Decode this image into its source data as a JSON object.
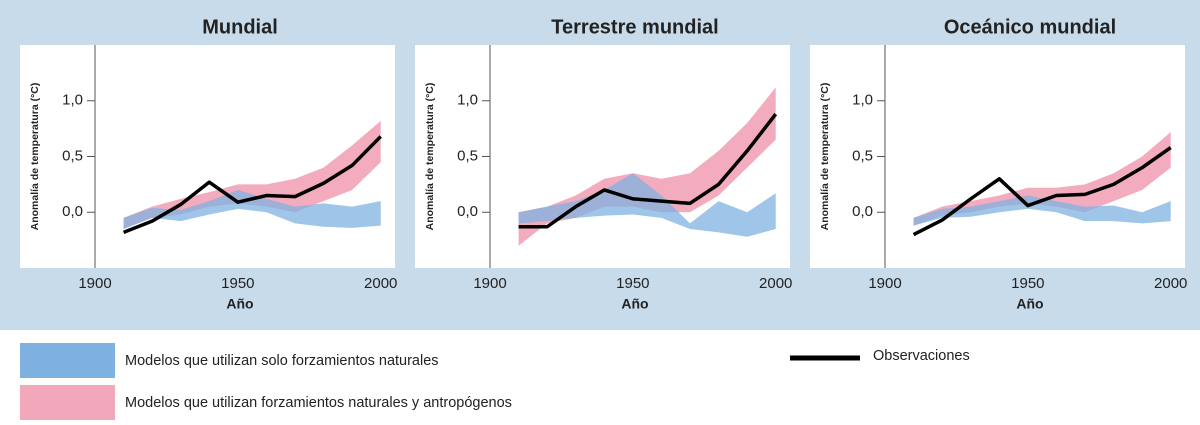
{
  "chart_data": [
    {
      "type": "line",
      "title": "Mundial",
      "xlabel": "Año",
      "ylabel": "Anomalía de temperatura (°C)",
      "x": [
        1910,
        1920,
        1930,
        1940,
        1950,
        1960,
        1970,
        1980,
        1990,
        2000
      ],
      "xlim": [
        1900,
        2005
      ],
      "ylim": [
        -0.5,
        1.5
      ],
      "xticks": [
        1900,
        1950,
        2000
      ],
      "yticks": [
        {
          "value": 0,
          "label": "0,0"
        },
        {
          "value": 0.5,
          "label": "0,5"
        },
        {
          "value": 1,
          "label": "1,0"
        }
      ],
      "bands": [
        {
          "color": "#f2a7ba",
          "low": [
            -0.15,
            -0.05,
            -0.02,
            0.05,
            0.08,
            0.05,
            0.0,
            0.1,
            0.2,
            0.45
          ],
          "high": [
            -0.05,
            0.05,
            0.12,
            0.18,
            0.25,
            0.25,
            0.3,
            0.4,
            0.6,
            0.82
          ]
        },
        {
          "color": "#7fb1e0",
          "low": [
            -0.15,
            -0.05,
            -0.08,
            -0.02,
            0.03,
            0.0,
            -0.1,
            -0.13,
            -0.14,
            -0.12
          ],
          "high": [
            -0.05,
            0.04,
            0.02,
            0.1,
            0.2,
            0.12,
            0.05,
            0.08,
            0.05,
            0.1
          ]
        }
      ],
      "series": [
        {
          "color": "#000000",
          "values": [
            -0.18,
            -0.08,
            0.07,
            0.27,
            0.09,
            0.15,
            0.14,
            0.26,
            0.42,
            0.68
          ]
        }
      ]
    },
    {
      "type": "line",
      "title": "Terrestre mundial",
      "xlabel": "Año",
      "ylabel": "Anomalía de temperatura (°C)",
      "x": [
        1910,
        1920,
        1930,
        1940,
        1950,
        1960,
        1970,
        1980,
        1990,
        2000
      ],
      "xlim": [
        1900,
        2005
      ],
      "ylim": [
        -0.5,
        1.5
      ],
      "xticks": [
        1900,
        1950,
        2000
      ],
      "yticks": [
        {
          "value": 0,
          "label": "0,0"
        },
        {
          "value": 0.5,
          "label": "0,5"
        },
        {
          "value": 1,
          "label": "1,0"
        }
      ],
      "bands": [
        {
          "color": "#f2a7ba",
          "low": [
            -0.3,
            -0.1,
            -0.05,
            0.05,
            0.05,
            0.0,
            0.0,
            0.15,
            0.4,
            0.65
          ],
          "high": [
            0.0,
            0.05,
            0.15,
            0.3,
            0.35,
            0.3,
            0.35,
            0.55,
            0.8,
            1.12
          ]
        },
        {
          "color": "#7fb1e0",
          "low": [
            -0.1,
            -0.08,
            -0.05,
            -0.03,
            -0.02,
            -0.05,
            -0.15,
            -0.18,
            -0.22,
            -0.15
          ],
          "high": [
            0.0,
            0.05,
            0.1,
            0.2,
            0.35,
            0.15,
            -0.1,
            0.1,
            0.0,
            0.17
          ]
        }
      ],
      "series": [
        {
          "color": "#000000",
          "values": [
            -0.13,
            -0.13,
            0.05,
            0.2,
            0.12,
            0.1,
            0.08,
            0.25,
            0.55,
            0.88
          ]
        }
      ]
    },
    {
      "type": "line",
      "title": "Oceánico mundial",
      "xlabel": "Año",
      "ylabel": "Anomalía de temperatura (°C)",
      "x": [
        1910,
        1920,
        1930,
        1940,
        1950,
        1960,
        1970,
        1980,
        1990,
        2000
      ],
      "xlim": [
        1900,
        2005
      ],
      "ylim": [
        -0.5,
        1.5
      ],
      "xticks": [
        1900,
        1950,
        2000
      ],
      "yticks": [
        {
          "value": 0,
          "label": "0,0"
        },
        {
          "value": 0.5,
          "label": "0,5"
        },
        {
          "value": 1,
          "label": "1,0"
        }
      ],
      "bands": [
        {
          "color": "#f2a7ba",
          "low": [
            -0.12,
            -0.03,
            0.0,
            0.05,
            0.08,
            0.05,
            0.0,
            0.1,
            0.2,
            0.4
          ],
          "high": [
            -0.05,
            0.05,
            0.1,
            0.15,
            0.22,
            0.22,
            0.25,
            0.35,
            0.5,
            0.72
          ]
        },
        {
          "color": "#7fb1e0",
          "low": [
            -0.12,
            -0.05,
            -0.04,
            0.0,
            0.03,
            0.0,
            -0.08,
            -0.08,
            -0.1,
            -0.08
          ],
          "high": [
            -0.05,
            0.03,
            0.05,
            0.1,
            0.15,
            0.1,
            0.05,
            0.06,
            0.0,
            0.1
          ]
        }
      ],
      "series": [
        {
          "color": "#000000",
          "values": [
            -0.2,
            -0.07,
            0.12,
            0.3,
            0.06,
            0.15,
            0.16,
            0.25,
            0.4,
            0.58
          ]
        }
      ]
    }
  ],
  "legend": [
    {
      "name": "Modelos que utilizan solo forzamientos naturales",
      "color": "#7fb1e0"
    },
    {
      "name": "Modelos que utilizan forzamientos naturales y antropógenos",
      "color": "#f2a7ba"
    },
    {
      "name": "Observaciones",
      "color": "#000000"
    }
  ]
}
